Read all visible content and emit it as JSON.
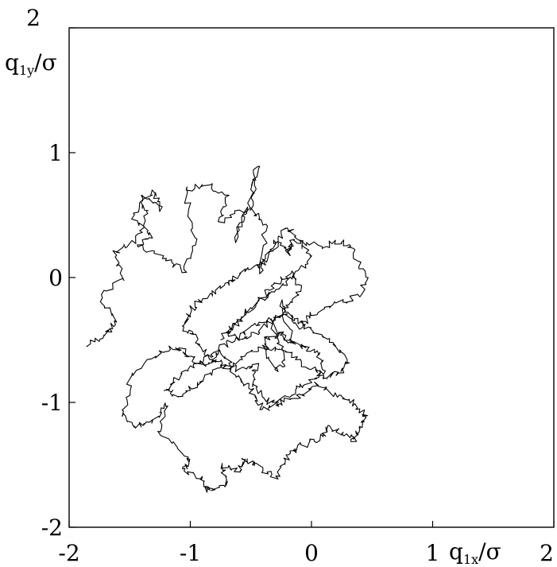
{
  "chart_data": {
    "type": "line",
    "xlabel": "q1x/σ",
    "ylabel": "q1y/σ",
    "xlim": [
      -2,
      2
    ],
    "ylim": [
      -2,
      2
    ],
    "grid": false,
    "x_ticks": [
      -2,
      -1,
      0,
      1,
      2
    ],
    "y_ticks": [
      -2,
      -1,
      0,
      1,
      2
    ],
    "x_tick_labels": [
      "-2",
      "-1",
      "0",
      "1",
      "2"
    ],
    "y_tick_labels": [
      "-2",
      "-1",
      "0",
      "1",
      "2"
    ],
    "series": [
      {
        "color": "#000000",
        "description": "single erratic trajectory in the (q1x, q1y) plane",
        "x": [
          -1.85,
          -1.7,
          -1.6,
          -1.75,
          -1.55,
          -1.62,
          -1.45,
          -1.35,
          -1.4,
          -1.25,
          -1.3,
          -1.48,
          -1.32,
          -1.42,
          -1.2,
          -1.05,
          -0.95,
          -1.05,
          -0.85,
          -0.7,
          -0.75,
          -0.55,
          -0.62,
          -0.48,
          -0.45,
          -0.5,
          -0.38,
          -0.42,
          -0.3,
          -0.2,
          -0.15,
          0.1,
          0.25,
          0.35,
          0.45,
          0.4,
          0.2,
          0.0,
          -0.1,
          -0.25,
          -0.15,
          -0.35,
          -0.2,
          -0.3,
          -0.4,
          -0.25,
          -0.1,
          0.05,
          0.1,
          -0.05,
          -0.2,
          -0.35,
          -0.5,
          -0.45,
          -0.6,
          -0.75,
          -0.85,
          -1.0,
          -1.1,
          -1.25,
          -1.5,
          -1.55,
          -1.45,
          -1.3,
          -1.2,
          -1.25,
          -1.0,
          -1.05,
          -0.9,
          -0.85,
          -0.7,
          -0.75,
          -0.6,
          -0.55,
          -0.45,
          -0.3,
          -0.2,
          -0.1,
          0.05,
          0.15,
          0.25,
          0.35,
          0.4,
          0.45,
          0.35,
          0.2,
          0.05,
          -0.1,
          -0.25,
          -0.4,
          -0.5,
          -0.6,
          -0.72,
          -0.85,
          -0.95,
          -1.05,
          -1.0,
          -0.85,
          -0.7,
          -0.55,
          -0.4,
          -0.3,
          -0.2,
          -0.1,
          0.0,
          -0.15,
          -0.3,
          -0.45,
          -0.6,
          -0.7,
          -0.55,
          -0.4,
          -0.25,
          -0.1,
          0.05,
          0.2,
          0.3,
          0.25,
          0.1,
          -0.05,
          -0.2,
          -0.35,
          -0.5,
          -0.65,
          -0.8,
          -0.95,
          -1.1,
          -1.2,
          -1.1,
          -0.95,
          -0.8,
          -0.65,
          -0.5,
          -0.35,
          -0.2,
          -0.1,
          -0.15,
          -0.3,
          -0.45,
          -0.6,
          -0.75
        ],
        "y": [
          -0.55,
          -0.45,
          -0.35,
          -0.15,
          0.0,
          0.2,
          0.3,
          0.5,
          0.65,
          0.55,
          0.7,
          0.5,
          0.35,
          0.25,
          0.15,
          0.05,
          0.3,
          0.7,
          0.75,
          0.65,
          0.45,
          0.55,
          0.3,
          0.7,
          0.9,
          0.55,
          0.4,
          0.05,
          0.3,
          0.2,
          0.3,
          0.25,
          0.3,
          0.2,
          0.0,
          -0.15,
          -0.2,
          -0.3,
          -0.4,
          -0.2,
          -0.55,
          -0.35,
          -0.65,
          -0.75,
          -0.5,
          -0.45,
          -0.55,
          -0.6,
          -0.75,
          -0.85,
          -0.95,
          -1.0,
          -0.85,
          -0.7,
          -0.75,
          -0.6,
          -0.7,
          -0.65,
          -0.55,
          -0.6,
          -0.8,
          -1.1,
          -1.2,
          -1.15,
          -1.0,
          -1.25,
          -1.45,
          -1.55,
          -1.6,
          -1.7,
          -1.65,
          -1.5,
          -1.55,
          -1.45,
          -1.5,
          -1.6,
          -1.45,
          -1.35,
          -1.3,
          -1.2,
          -1.25,
          -1.3,
          -1.2,
          -1.1,
          -1.0,
          -0.95,
          -0.85,
          -0.95,
          -1.0,
          -1.05,
          -0.9,
          -0.8,
          -0.7,
          -0.65,
          -0.5,
          -0.4,
          -0.25,
          -0.15,
          -0.05,
          0.05,
          0.1,
          0.25,
          0.4,
          0.3,
          0.15,
          0.0,
          -0.1,
          -0.2,
          -0.35,
          -0.45,
          -0.5,
          -0.4,
          -0.3,
          -0.35,
          -0.45,
          -0.55,
          -0.65,
          -0.75,
          -0.8,
          -0.7,
          -0.6,
          -0.55,
          -0.6,
          -0.7,
          -0.75,
          -0.85,
          -0.95,
          -0.9,
          -0.8,
          -0.7,
          -0.6,
          -0.5,
          -0.4,
          -0.35,
          -0.25,
          -0.1,
          0.05,
          -0.05,
          -0.2,
          -0.35,
          -0.5
        ]
      }
    ]
  }
}
